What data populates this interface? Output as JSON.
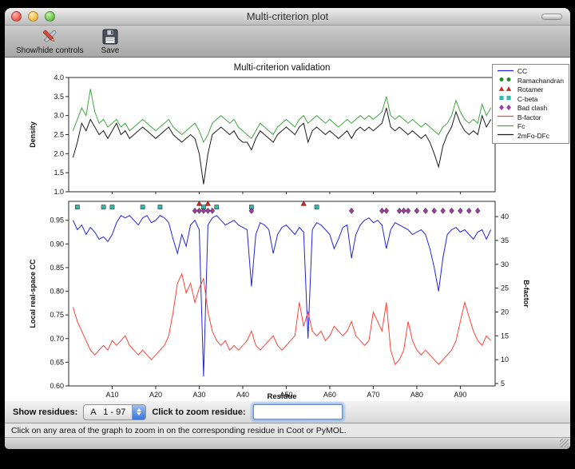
{
  "window": {
    "title": "Multi-criterion plot"
  },
  "toolbar": {
    "buttons": [
      {
        "label": "Show/hide controls",
        "icon": "tools-icon"
      },
      {
        "label": "Save",
        "icon": "save-icon"
      }
    ]
  },
  "controls": {
    "show_residues_label": "Show residues:",
    "residue_range_value": "A   1 - 97",
    "zoom_residue_label": "Click to zoom residue:",
    "zoom_residue_value": ""
  },
  "status_bar": {
    "text": "Click on any area of the graph to zoom in on the corresponding residue in Coot or PyMOL."
  },
  "chart_data": {
    "type": "line",
    "title": "Multi-criterion validation",
    "xlabel": "Residue",
    "xlim": [
      0,
      98
    ],
    "x_ticks": [
      {
        "v": 10,
        "label": "A10"
      },
      {
        "v": 20,
        "label": "A20"
      },
      {
        "v": 30,
        "label": "A30"
      },
      {
        "v": 40,
        "label": "A40"
      },
      {
        "v": 50,
        "label": "A50"
      },
      {
        "v": 60,
        "label": "A60"
      },
      {
        "v": 70,
        "label": "A70"
      },
      {
        "v": 80,
        "label": "A80"
      },
      {
        "v": 90,
        "label": "A90"
      }
    ],
    "top_plot": {
      "ylabel": "Density",
      "ylim": [
        1.0,
        4.0
      ],
      "yticks": [
        1.0,
        1.5,
        2.0,
        2.5,
        3.0,
        3.5,
        4.0
      ],
      "series": [
        {
          "name": "Fc",
          "color": "#43a543",
          "values": [
            2.6,
            2.9,
            3.2,
            3.0,
            3.7,
            3.1,
            2.8,
            2.9,
            2.7,
            2.8,
            2.9,
            2.7,
            2.8,
            2.6,
            2.7,
            2.8,
            2.9,
            2.8,
            2.7,
            2.6,
            2.7,
            2.8,
            2.9,
            2.7,
            2.6,
            2.5,
            2.6,
            2.7,
            2.8,
            2.6,
            2.3,
            2.5,
            2.8,
            2.9,
            3.0,
            2.9,
            2.8,
            2.9,
            2.7,
            2.6,
            2.5,
            2.4,
            2.6,
            2.8,
            2.7,
            2.6,
            2.5,
            2.7,
            2.8,
            2.9,
            2.8,
            2.7,
            2.9,
            3.0,
            2.8,
            2.9,
            3.0,
            2.9,
            2.8,
            2.9,
            2.8,
            2.7,
            2.8,
            2.9,
            2.8,
            2.9,
            3.0,
            2.9,
            3.0,
            2.9,
            3.0,
            3.1,
            3.5,
            3.0,
            2.9,
            3.0,
            2.9,
            2.8,
            2.9,
            2.8,
            2.7,
            2.8,
            2.7,
            2.6,
            2.5,
            2.7,
            2.8,
            3.0,
            3.4,
            3.1,
            2.9,
            2.8,
            2.9,
            2.8,
            3.3,
            3.0,
            3.2
          ]
        },
        {
          "name": "2mFo-DFc",
          "color": "#1b1b1b",
          "values": [
            1.9,
            2.3,
            2.8,
            2.6,
            2.9,
            2.7,
            2.5,
            2.6,
            2.4,
            2.6,
            2.8,
            2.5,
            2.6,
            2.4,
            2.5,
            2.6,
            2.7,
            2.6,
            2.5,
            2.4,
            2.5,
            2.6,
            2.7,
            2.5,
            2.4,
            2.3,
            2.4,
            2.5,
            2.4,
            2.0,
            1.2,
            2.0,
            2.5,
            2.6,
            2.7,
            2.6,
            2.5,
            2.6,
            2.4,
            2.3,
            2.3,
            2.1,
            2.4,
            2.6,
            2.5,
            2.4,
            2.3,
            2.5,
            2.6,
            2.7,
            2.6,
            2.5,
            2.7,
            2.8,
            2.3,
            2.6,
            2.7,
            2.6,
            2.5,
            2.6,
            2.5,
            2.4,
            2.5,
            2.6,
            2.4,
            2.6,
            2.7,
            2.6,
            2.7,
            2.6,
            2.7,
            2.8,
            3.2,
            2.7,
            2.6,
            2.7,
            2.6,
            2.5,
            2.6,
            2.5,
            2.4,
            2.5,
            2.3,
            2.0,
            1.65,
            2.2,
            2.5,
            2.7,
            3.1,
            2.8,
            2.6,
            2.5,
            2.6,
            2.5,
            3.0,
            2.7,
            2.9
          ]
        }
      ]
    },
    "bottom_plot": {
      "ylabel_left": "Local real-space CC",
      "ylabel_right": "B-factor",
      "ylim_left": [
        0.6,
        0.99
      ],
      "yticks_left": [
        0.6,
        0.65,
        0.7,
        0.75,
        0.8,
        0.85,
        0.9,
        0.95
      ],
      "ylim_right": [
        4.5,
        43.2
      ],
      "yticks_right": [
        5,
        10,
        15,
        20,
        25,
        30,
        35,
        40
      ],
      "series": [
        {
          "name": "CC",
          "axis": "left",
          "color": "#2323dd",
          "values": [
            0.95,
            0.93,
            0.94,
            0.92,
            0.935,
            0.925,
            0.91,
            0.915,
            0.905,
            0.92,
            0.945,
            0.96,
            0.955,
            0.96,
            0.95,
            0.94,
            0.955,
            0.96,
            0.945,
            0.95,
            0.96,
            0.955,
            0.945,
            0.91,
            0.88,
            0.92,
            0.895,
            0.94,
            0.95,
            0.93,
            0.62,
            0.94,
            0.955,
            0.96,
            0.95,
            0.94,
            0.945,
            0.95,
            0.94,
            0.935,
            0.93,
            0.81,
            0.92,
            0.945,
            0.94,
            0.93,
            0.88,
            0.92,
            0.935,
            0.94,
            0.93,
            0.92,
            0.935,
            0.925,
            0.7,
            0.93,
            0.945,
            0.94,
            0.93,
            0.92,
            0.89,
            0.91,
            0.935,
            0.94,
            0.87,
            0.92,
            0.94,
            0.95,
            0.955,
            0.945,
            0.95,
            0.94,
            0.89,
            0.93,
            0.945,
            0.94,
            0.935,
            0.93,
            0.92,
            0.925,
            0.93,
            0.92,
            0.89,
            0.85,
            0.8,
            0.87,
            0.92,
            0.93,
            0.935,
            0.925,
            0.93,
            0.92,
            0.91,
            0.925,
            0.93,
            0.91,
            0.93
          ]
        },
        {
          "name": "B-factor",
          "axis": "right",
          "color": "#f9453a",
          "values": [
            21,
            18,
            16,
            14,
            12,
            11,
            12,
            13,
            12,
            14,
            13,
            14,
            15,
            13,
            12,
            11,
            12,
            11,
            10,
            11,
            12,
            13,
            15,
            20,
            26,
            28,
            24,
            26,
            22,
            25,
            27,
            20,
            16,
            14,
            13,
            14,
            12,
            13,
            12,
            13,
            14,
            16,
            13,
            12,
            13,
            14,
            15,
            13,
            12,
            13,
            14,
            15,
            22,
            17,
            20,
            16,
            15,
            16,
            14,
            15,
            17,
            16,
            15,
            16,
            18,
            15,
            14,
            13,
            14,
            20,
            18,
            16,
            22,
            12,
            9,
            10,
            12,
            18,
            14,
            12,
            11,
            12,
            11,
            10,
            9,
            10,
            11,
            12,
            14,
            18,
            22,
            19,
            16,
            14,
            13,
            15,
            14
          ]
        }
      ],
      "markers": [
        {
          "name": "Ramachandran",
          "shape": "circle",
          "color": "#1e8f1e",
          "y": 0.985,
          "residues": []
        },
        {
          "name": "Rotamer",
          "shape": "triangle",
          "color": "#cc2a1e",
          "y": 0.985,
          "residues": [
            30,
            32,
            54
          ]
        },
        {
          "name": "C-beta",
          "shape": "square",
          "color": "#35b8ac",
          "y": 0.978,
          "residues": [
            2,
            8,
            10,
            17,
            21,
            31,
            34,
            42,
            57
          ]
        },
        {
          "name": "Bad clash",
          "shape": "diamond",
          "color": "#a03ca0",
          "y": 0.97,
          "residues": [
            29,
            30,
            31,
            32,
            33,
            42,
            65,
            72,
            73,
            76,
            77,
            78,
            80,
            82,
            84,
            86,
            88,
            90,
            92,
            94
          ]
        }
      ]
    },
    "legend": [
      {
        "label": "CC",
        "type": "line",
        "color": "#2323dd"
      },
      {
        "label": "Ramachandran",
        "type": "marker",
        "shape": "circle",
        "color": "#1e8f1e"
      },
      {
        "label": "Rotamer",
        "type": "marker",
        "shape": "triangle",
        "color": "#cc2a1e"
      },
      {
        "label": "C-beta",
        "type": "marker",
        "shape": "square",
        "color": "#35b8ac"
      },
      {
        "label": "Bad clash",
        "type": "marker",
        "shape": "diamond",
        "color": "#a03ca0"
      },
      {
        "label": "B-factor",
        "type": "line",
        "color": "#f9453a"
      },
      {
        "label": "Fc",
        "type": "line",
        "color": "#43a543"
      },
      {
        "label": "2mFo-DFc",
        "type": "line",
        "color": "#1b1b1b"
      }
    ]
  }
}
